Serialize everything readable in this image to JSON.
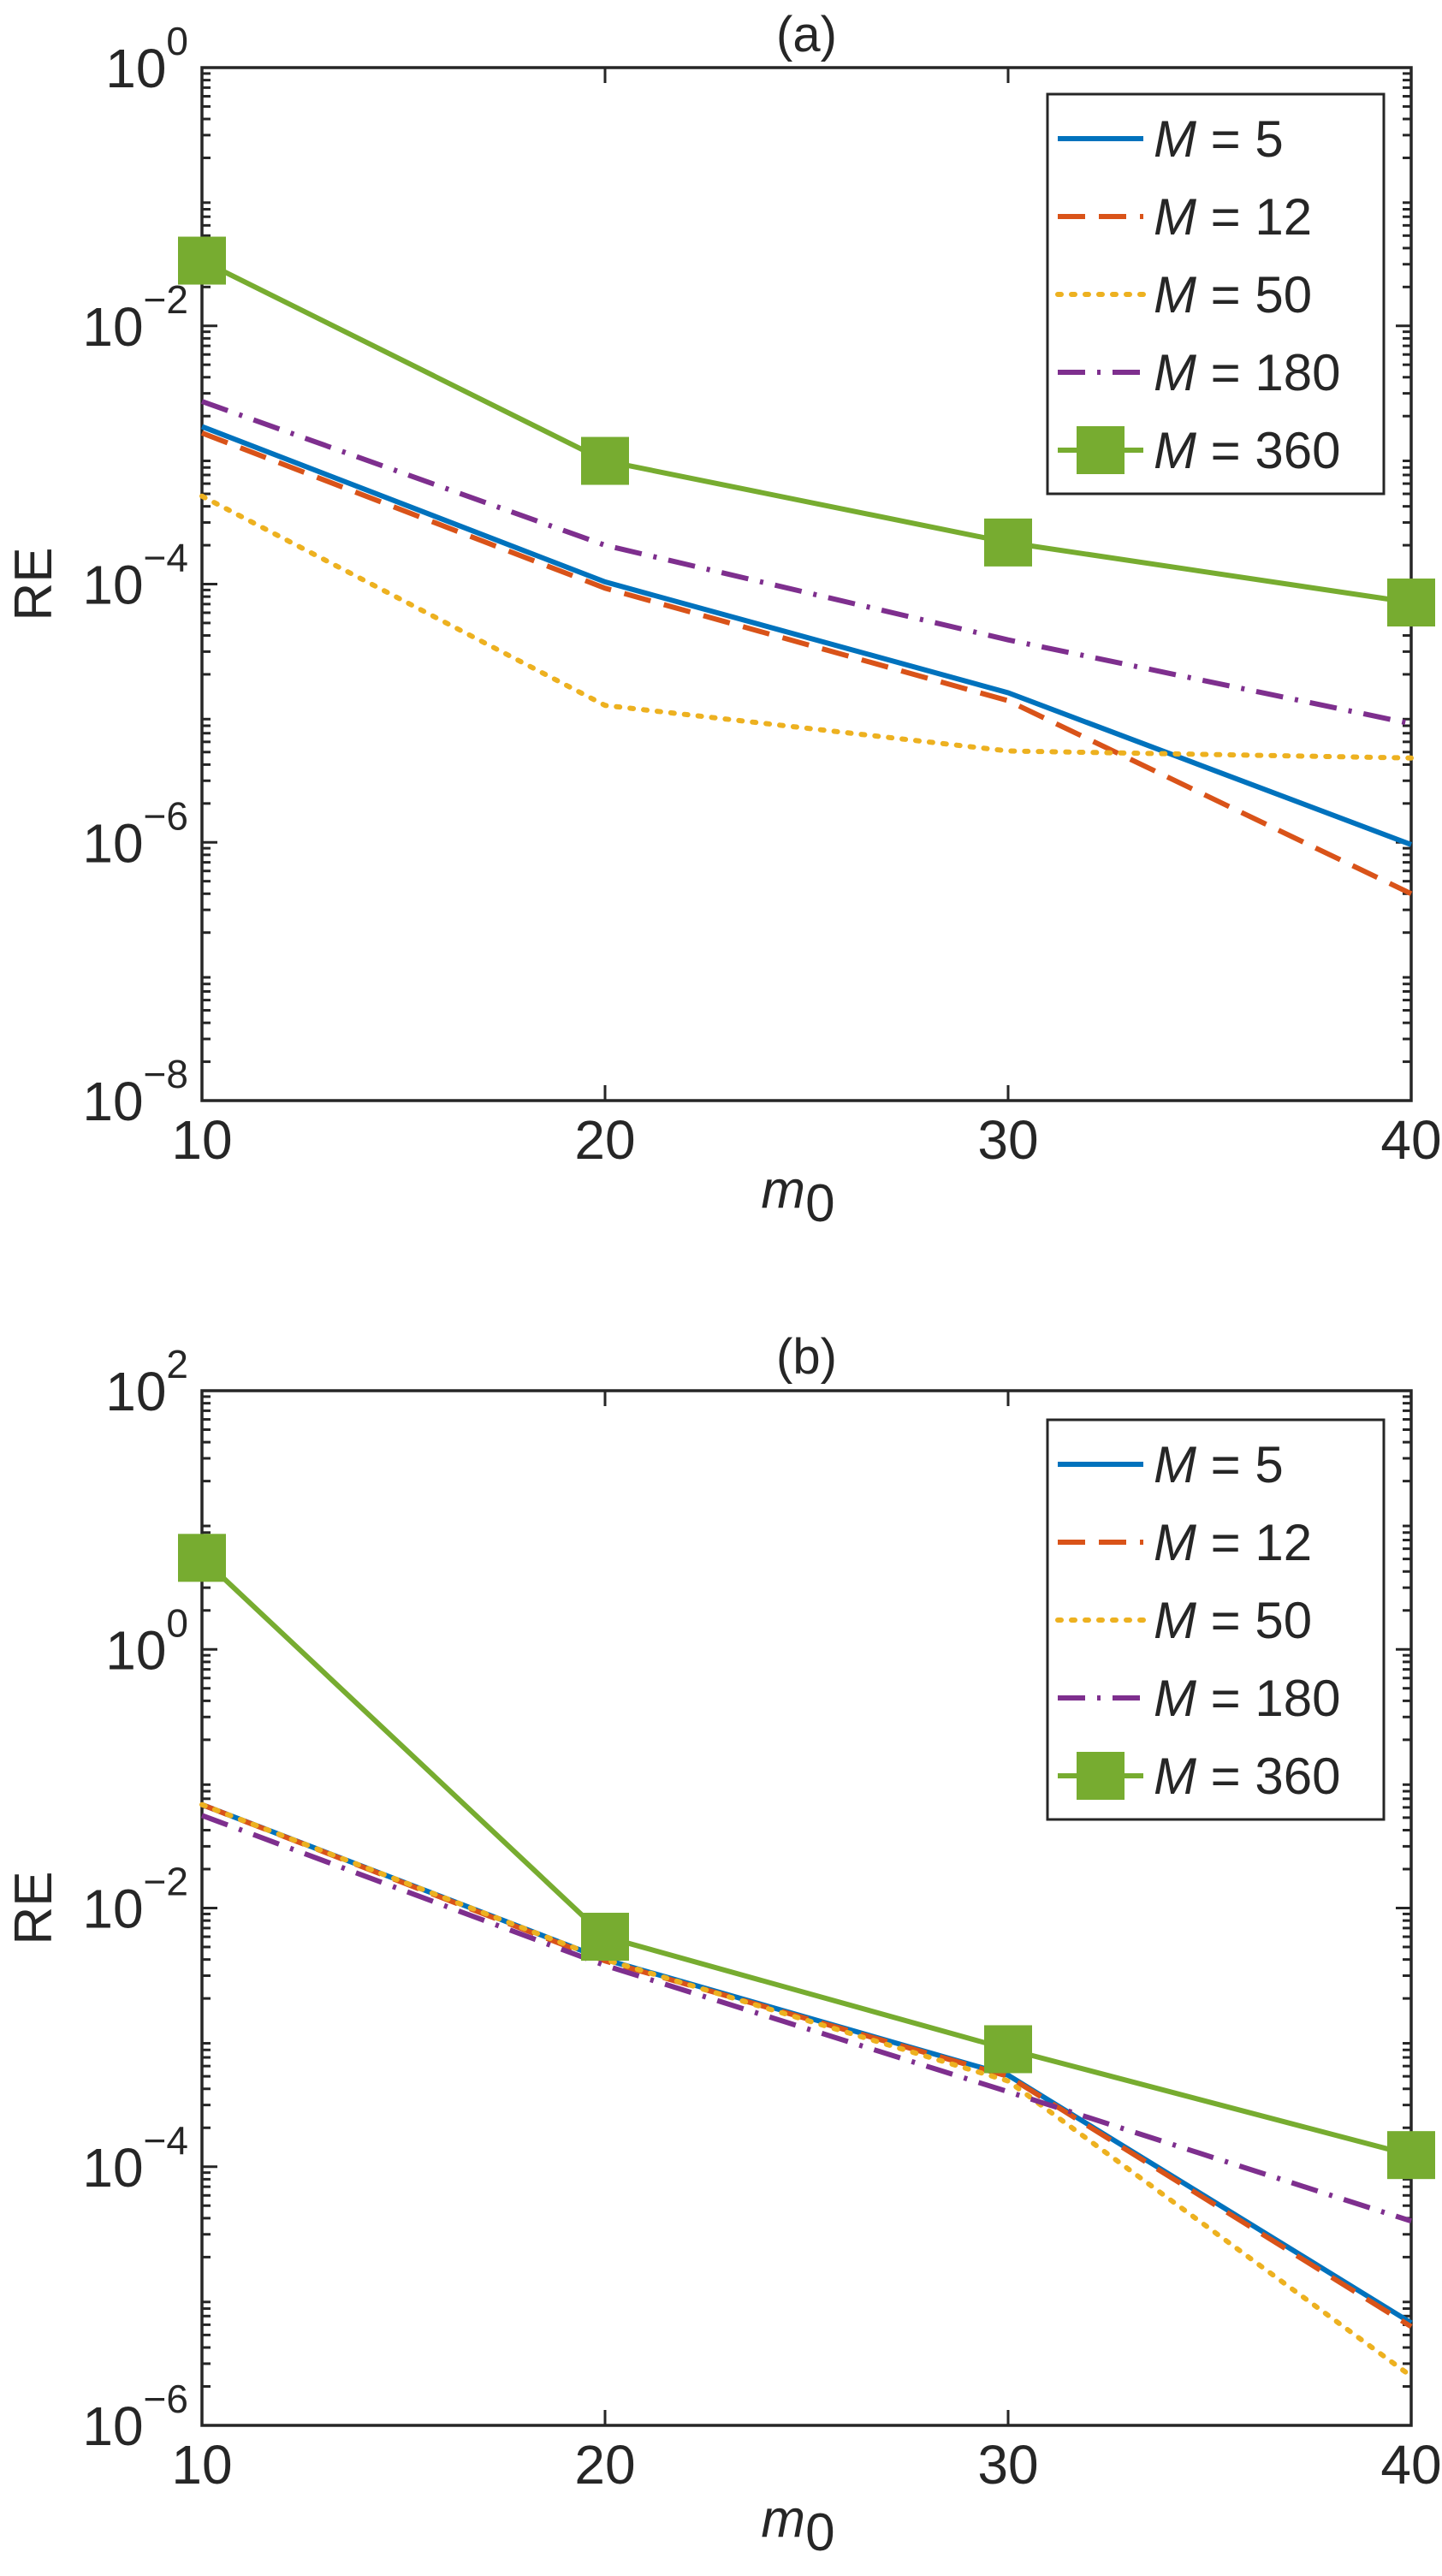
{
  "colors": {
    "M5": "#0072BD",
    "M12": "#D95319",
    "M50": "#EDB120",
    "M180": "#7E2F8E",
    "M360": "#77AC30",
    "axis": "#262626"
  },
  "chart_data": [
    {
      "type": "line",
      "title": "(a)",
      "xlabel": "m",
      "xlabel_sub": "0",
      "ylabel": "RE",
      "yscale": "log",
      "x": [
        10,
        20,
        30,
        40
      ],
      "xlim": [
        10,
        40
      ],
      "xticks": [
        10,
        20,
        30,
        40
      ],
      "xtick_labels": [
        "10",
        "20",
        "30",
        "40"
      ],
      "ylim_exp": [
        -8,
        0
      ],
      "yticks_exp": [
        -8,
        -6,
        -4,
        -2,
        0
      ],
      "ytick_labels": [
        {
          "base": "10",
          "exp": "−8"
        },
        {
          "base": "10",
          "exp": "−6"
        },
        {
          "base": "10",
          "exp": "−4"
        },
        {
          "base": "10",
          "exp": "−2"
        },
        {
          "base": "10",
          "exp": "0"
        }
      ],
      "legend_placement": "top-right",
      "grid": false,
      "series": [
        {
          "name": "M = 5",
          "var": "M",
          "label_rest": " = 5",
          "color_key": "M5",
          "style": "solid",
          "values": [
            0.00166,
            0.000104,
            1.44e-05,
            9.6e-07
          ]
        },
        {
          "name": "M = 12",
          "var": "M",
          "label_rest": " = 12",
          "color_key": "M12",
          "style": "dashed",
          "values": [
            0.00148,
            9.3e-05,
            1.25e-05,
            4e-07
          ]
        },
        {
          "name": "M = 50",
          "var": "M",
          "label_rest": " = 50",
          "color_key": "M50",
          "style": "dotted",
          "values": [
            0.00048,
            1.15e-05,
            5.1e-06,
            4.5e-06
          ]
        },
        {
          "name": "M = 180",
          "var": "M",
          "label_rest": " = 180",
          "color_key": "M180",
          "style": "dashdot",
          "values": [
            0.0026,
            0.0002,
            3.7e-05,
            8.3e-06
          ]
        },
        {
          "name": "M = 360",
          "var": "M",
          "label_rest": " = 360",
          "color_key": "M360",
          "style": "solid",
          "marker": "square",
          "values": [
            0.032,
            0.0009,
            0.00021,
            7.2e-05
          ]
        }
      ]
    },
    {
      "type": "line",
      "title": "(b)",
      "xlabel": "m",
      "xlabel_sub": "0",
      "ylabel": "RE",
      "yscale": "log",
      "x": [
        10,
        20,
        30,
        40
      ],
      "xlim": [
        10,
        40
      ],
      "xticks": [
        10,
        20,
        30,
        40
      ],
      "xtick_labels": [
        "10",
        "20",
        "30",
        "40"
      ],
      "ylim_exp": [
        -6,
        2
      ],
      "yticks_exp": [
        -6,
        -4,
        -2,
        0,
        2
      ],
      "ytick_labels": [
        {
          "base": "10",
          "exp": "−6"
        },
        {
          "base": "10",
          "exp": "−4"
        },
        {
          "base": "10",
          "exp": "−2"
        },
        {
          "base": "10",
          "exp": "0"
        },
        {
          "base": "10",
          "exp": "2"
        }
      ],
      "legend_placement": "top-right",
      "grid": false,
      "series": [
        {
          "name": "M = 5",
          "var": "M",
          "label_rest": " = 5",
          "color_key": "M5",
          "style": "solid",
          "values": [
            0.063,
            0.004,
            0.00051,
            6.2e-06
          ]
        },
        {
          "name": "M = 12",
          "var": "M",
          "label_rest": " = 12",
          "color_key": "M12",
          "style": "dashed",
          "values": [
            0.063,
            0.0039,
            0.0005,
            5.8e-06
          ]
        },
        {
          "name": "M = 50",
          "var": "M",
          "label_rest": " = 50",
          "color_key": "M50",
          "style": "dotted",
          "values": [
            0.063,
            0.004,
            0.00046,
            2.4e-06
          ]
        },
        {
          "name": "M = 180",
          "var": "M",
          "label_rest": " = 180",
          "color_key": "M180",
          "style": "dashdot",
          "values": [
            0.052,
            0.0036,
            0.00038,
            3.8e-05
          ]
        },
        {
          "name": "M = 360",
          "var": "M",
          "label_rest": " = 360",
          "color_key": "M360",
          "style": "solid",
          "marker": "square",
          "values": [
            5.1,
            0.006,
            0.00081,
            0.000123
          ]
        }
      ]
    }
  ]
}
